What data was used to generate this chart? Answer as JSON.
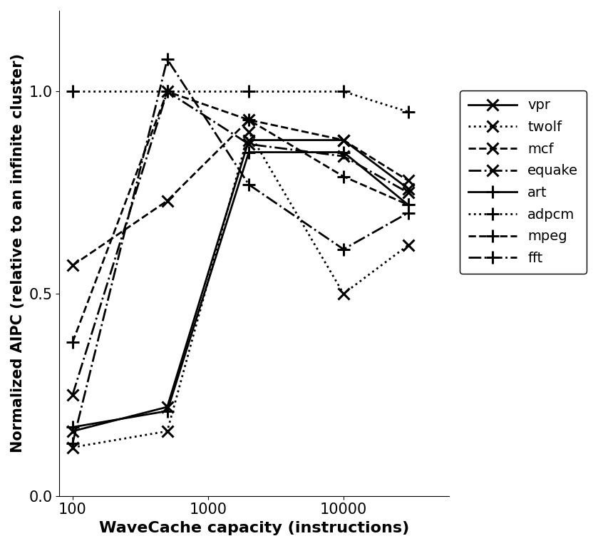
{
  "xlabel": "WaveCache capacity (instructions)",
  "ylabel": "Normalized AIPC (relative to an infinite cluster)",
  "xlim": [
    80,
    60000
  ],
  "ylim": [
    0.0,
    1.2
  ],
  "yticks": [
    0.0,
    0.5,
    1.0
  ],
  "xticks": [
    100,
    1000,
    10000
  ],
  "xticklabels": [
    "100",
    "1000",
    "10000"
  ],
  "series": [
    {
      "name": "vpr",
      "x": [
        100,
        500,
        2000,
        10000,
        30000
      ],
      "y": [
        0.16,
        0.22,
        0.88,
        0.88,
        0.76
      ],
      "linestyle": "solid",
      "marker": "x",
      "markersize": 11,
      "linewidth": 2.0
    },
    {
      "name": "twolf",
      "x": [
        100,
        500,
        2000,
        10000,
        30000
      ],
      "y": [
        0.12,
        0.16,
        0.9,
        0.5,
        0.62
      ],
      "linestyle": "dotted",
      "marker": "x",
      "markersize": 11,
      "linewidth": 2.0
    },
    {
      "name": "mcf",
      "x": [
        100,
        500,
        2000,
        10000,
        30000
      ],
      "y": [
        0.57,
        0.73,
        0.93,
        0.88,
        0.78
      ],
      "linestyle": "dashed",
      "marker": "x",
      "markersize": 11,
      "linewidth": 2.0
    },
    {
      "name": "equake",
      "x": [
        100,
        500,
        2000,
        10000,
        30000
      ],
      "y": [
        0.25,
        1.0,
        0.87,
        0.84,
        0.75
      ],
      "linestyle": "dashdot",
      "marker": "x",
      "markersize": 11,
      "linewidth": 2.0
    },
    {
      "name": "art",
      "x": [
        100,
        500,
        2000,
        10000,
        30000
      ],
      "y": [
        0.17,
        0.21,
        0.85,
        0.85,
        0.72
      ],
      "linestyle": "solid",
      "marker": "+",
      "markersize": 13,
      "linewidth": 2.0
    },
    {
      "name": "adpcm",
      "x": [
        100,
        500,
        2000,
        10000,
        30000
      ],
      "y": [
        1.0,
        1.0,
        1.0,
        1.0,
        0.95
      ],
      "linestyle": "dotted",
      "marker": "+",
      "markersize": 13,
      "linewidth": 2.0
    },
    {
      "name": "mpeg",
      "x": [
        100,
        500,
        2000,
        10000,
        30000
      ],
      "y": [
        0.38,
        1.0,
        0.93,
        0.79,
        0.72
      ],
      "linestyle": "dashed",
      "marker": "+",
      "markersize": 13,
      "linewidth": 2.0
    },
    {
      "name": "fft",
      "x": [
        100,
        500,
        2000,
        10000,
        30000
      ],
      "y": [
        0.13,
        1.08,
        0.77,
        0.61,
        0.7
      ],
      "linestyle": "dashdot",
      "marker": "+",
      "markersize": 13,
      "linewidth": 2.0
    }
  ],
  "background_color": "#ffffff",
  "line_color": "#000000"
}
